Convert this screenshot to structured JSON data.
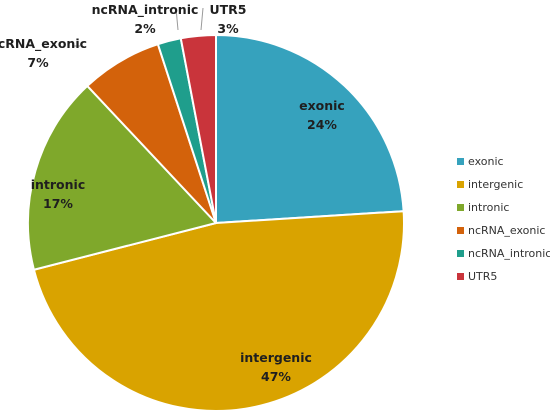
{
  "chart_data": {
    "type": "pie",
    "title": "",
    "legend_position": "right",
    "slices": [
      {
        "name": "exonic",
        "value": 24,
        "label": "24%",
        "color": "#36a2bd"
      },
      {
        "name": "intergenic",
        "value": 47,
        "label": "47%",
        "color": "#d9a300"
      },
      {
        "name": "intronic",
        "value": 17,
        "label": "17%",
        "color": "#7fa82b"
      },
      {
        "name": "ncRNA_exonic",
        "value": 7,
        "label": "7%",
        "color": "#d3620b"
      },
      {
        "name": "ncRNA_intronic",
        "value": 2,
        "label": "2%",
        "color": "#1f9e8c"
      },
      {
        "name": "UTR5",
        "value": 3,
        "label": "3%",
        "color": "#c9343b"
      }
    ]
  }
}
